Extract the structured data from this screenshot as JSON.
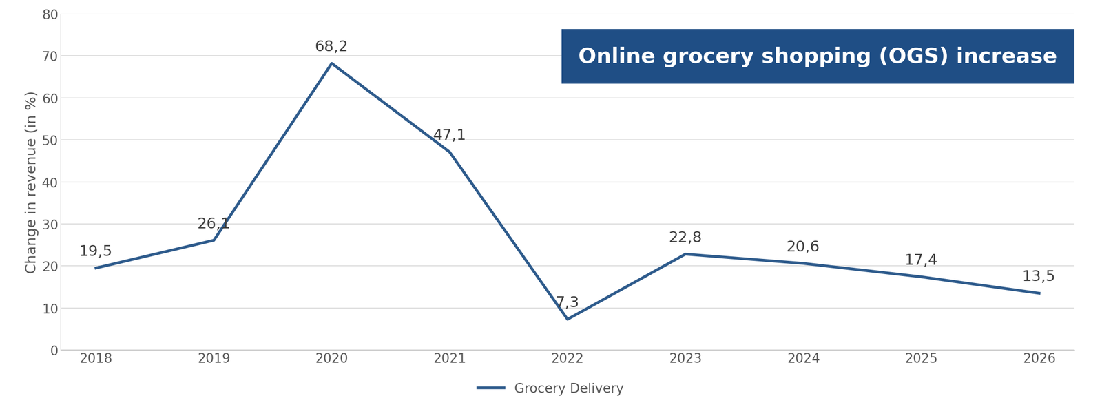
{
  "chart_data": {
    "type": "line",
    "title": "Online grocery shopping (OGS) increase",
    "y_label": "Change in revenue (in %)",
    "categories": [
      "2018",
      "2019",
      "2020",
      "2021",
      "2022",
      "2023",
      "2024",
      "2025",
      "2026"
    ],
    "series": [
      {
        "name": "Grocery Delivery",
        "color": "#2e5b8c",
        "values": [
          19.5,
          26.1,
          68.2,
          47.1,
          7.3,
          22.8,
          20.6,
          17.4,
          13.5
        ],
        "value_labels": [
          "19,5",
          "26,1",
          "68,2",
          "47,1",
          "7,3",
          "22,8",
          "20,6",
          "17,4",
          "13,5"
        ]
      }
    ],
    "ylim": [
      0,
      80
    ],
    "yticks": [
      0,
      10,
      20,
      30,
      40,
      50,
      60,
      70,
      80
    ],
    "grid": true,
    "data_labels": true,
    "legend": "lower center"
  }
}
